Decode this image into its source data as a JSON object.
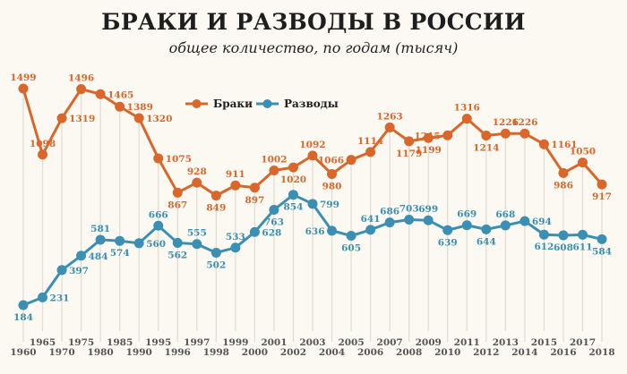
{
  "chart_data": {
    "type": "line",
    "title": "БРАКИ И РАЗВОДЫ В РОССИИ",
    "subtitle": "общее количество, по годам (тысяч)",
    "xlabel": "",
    "ylabel": "",
    "x": [
      "1960",
      "1965",
      "1970",
      "1975",
      "1980",
      "1985",
      "1990",
      "1995",
      "1996",
      "1997",
      "1998",
      "1999",
      "2000",
      "2001",
      "2002",
      "2003",
      "2004",
      "2005",
      "2006",
      "2007",
      "2008",
      "2009",
      "2010",
      "2011",
      "2012",
      "2013",
      "2014",
      "2015",
      "2016",
      "2017",
      "2018"
    ],
    "series": [
      {
        "name": "Браки",
        "color": "#d9662a",
        "values": [
          1499,
          1098,
          1319,
          1496,
          1465,
          1389,
          1320,
          1075,
          867,
          928,
          849,
          911,
          897,
          1002,
          1020,
          1092,
          980,
          1066,
          1114,
          1263,
          1179,
          1199,
          1215,
          1316,
          1214,
          1226,
          1226,
          1161,
          986,
          1050,
          917
        ]
      },
      {
        "name": "Разводы",
        "color": "#3a8fb3",
        "values": [
          184,
          231,
          397,
          484,
          581,
          574,
          560,
          666,
          562,
          555,
          502,
          533,
          628,
          763,
          854,
          799,
          636,
          605,
          641,
          686,
          703,
          699,
          639,
          669,
          644,
          668,
          694,
          612,
          608,
          611,
          584
        ]
      }
    ],
    "ylim": [
      184,
      1499
    ],
    "grid": "vertical",
    "legend": "top-center"
  }
}
